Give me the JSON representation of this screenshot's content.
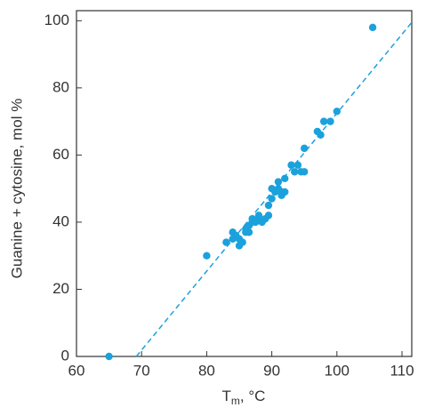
{
  "chart_data": {
    "type": "scatter",
    "x_label": "T",
    "x_label_subscript": "m",
    "x_label_suffix": ", °C",
    "y_label": "Guanine + cytosine, mol %",
    "color": "#1ba1dc",
    "x": [
      65,
      80,
      83,
      84,
      84,
      84.5,
      85,
      85,
      85.5,
      86,
      86,
      86.5,
      86.5,
      87,
      87,
      87.5,
      88,
      88,
      88.5,
      89,
      89.5,
      89.5,
      90,
      90,
      90.5,
      91,
      91.5,
      91.5,
      91,
      92,
      92,
      93,
      93.5,
      94,
      94.5,
      95,
      95,
      97,
      97.5,
      98,
      99,
      100,
      105.5
    ],
    "y": [
      0,
      30,
      34,
      35,
      37,
      36,
      33,
      35,
      34,
      37,
      38,
      37,
      39,
      40,
      41,
      40,
      41,
      42,
      40,
      41,
      45,
      42,
      47,
      50,
      49,
      50,
      48,
      49,
      52,
      49,
      53,
      57,
      55,
      57,
      55,
      62,
      55,
      67,
      66,
      70,
      70,
      73,
      98
    ],
    "fit_line": {
      "x": [
        69.2,
        111.5
      ],
      "y": [
        0,
        99.5
      ]
    },
    "xlim": [
      60,
      111.5
    ],
    "ylim": [
      0,
      103
    ],
    "xticks": [
      60,
      70,
      80,
      90,
      100,
      110
    ],
    "yticks": [
      0,
      20,
      40,
      60,
      80,
      100
    ]
  }
}
